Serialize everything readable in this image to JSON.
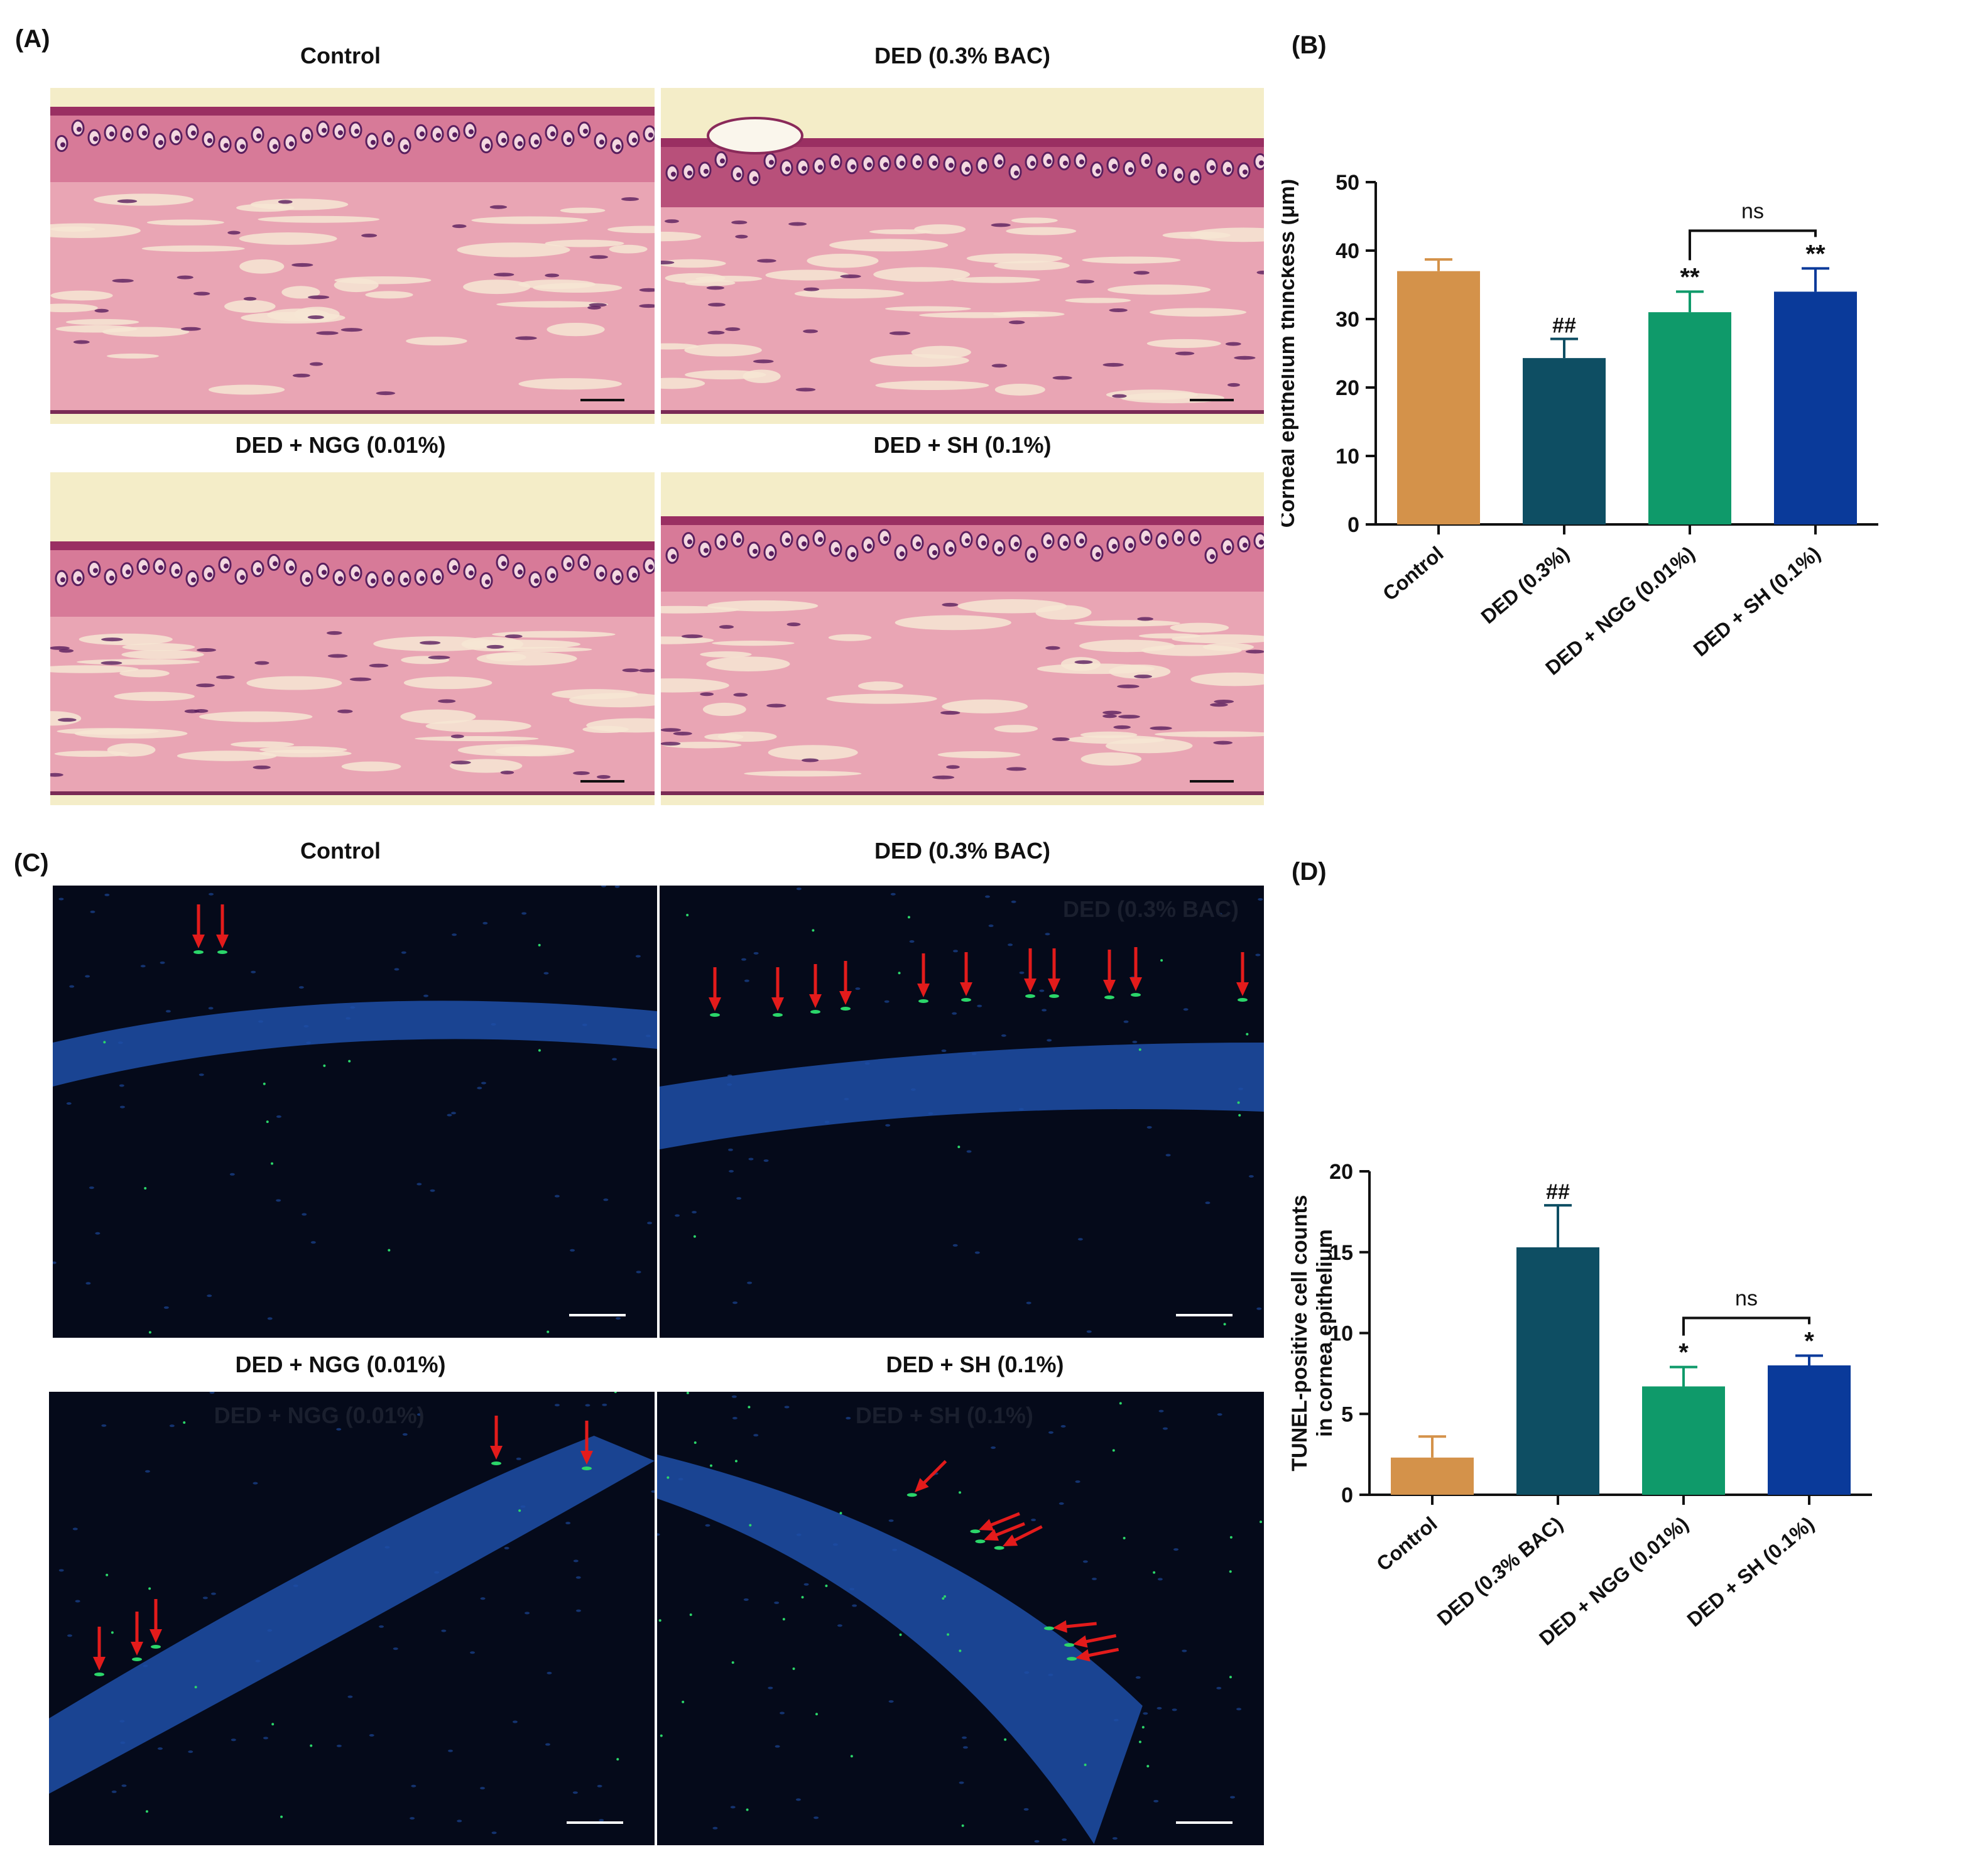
{
  "panel_letters": {
    "A": "(A)",
    "B": "(B)",
    "C": "(C)",
    "D": "(D)"
  },
  "he_panels": [
    {
      "title": "Control",
      "variant": "control"
    },
    {
      "title": "DED (0.3% BAC)",
      "variant": "ded"
    },
    {
      "title": "DED + NGG (0.01%)",
      "variant": "ngg"
    },
    {
      "title": "DED + SH (0.1%)",
      "variant": "sh"
    }
  ],
  "tunel_panels": [
    {
      "title": "Control",
      "overlay_label": "",
      "arrows": 2
    },
    {
      "title": "DED (0.3% BAC)",
      "overlay_label": "DED (0.3% BAC)",
      "arrows": 13
    },
    {
      "title": "DED + NGG (0.01%)",
      "overlay_label": "DED + NGG (0.01%)",
      "arrows": 5
    },
    {
      "title": "DED + SH (0.1%)",
      "overlay_label": "DED + SH (0.1%)",
      "arrows": 8
    }
  ],
  "colors": {
    "control": "#D4924A",
    "ded": "#0E4E63",
    "ngg": "#0F9A6A",
    "sh": "#0A3A9A",
    "arrow": "#E31B1B",
    "he_pink": "#E9A5B4",
    "he_nuclei": "#5A1F5E",
    "tunel_bg": "#050A1A",
    "dapi": "#1E4FA8",
    "tunel_green": "#2BD66A"
  },
  "chart_data": [
    {
      "type": "bar",
      "panel": "B",
      "categories": [
        "Control",
        "DED (0.3%)",
        "DED + NGG (0.01%)",
        "DED + SH (0.1%)"
      ],
      "values": [
        37,
        24.3,
        31,
        34
      ],
      "errors": [
        1.7,
        2.8,
        3.0,
        3.4
      ],
      "significance": [
        "",
        "##",
        "**",
        "**"
      ],
      "comparison": {
        "from": 2,
        "to": 3,
        "label": "ns"
      },
      "ylabel": "Corneal epithelium thinckess (μm)",
      "ylim": [
        0,
        50
      ],
      "yticks": [
        0,
        10,
        20,
        30,
        40,
        50
      ],
      "grid": false
    },
    {
      "type": "bar",
      "panel": "D",
      "categories": [
        "Control",
        "DED (0.3% BAC)",
        "DED + NGG (0.01%)",
        "DED + SH (0.1%)"
      ],
      "values": [
        2.3,
        15.3,
        6.7,
        8.0
      ],
      "errors": [
        1.3,
        2.6,
        1.2,
        0.6
      ],
      "significance": [
        "",
        "##",
        "*",
        "*"
      ],
      "comparison": {
        "from": 2,
        "to": 3,
        "label": "ns"
      },
      "ylabel": [
        "TUNEL-positive cell counts",
        "in cornea epithelium"
      ],
      "ylim": [
        0,
        20
      ],
      "yticks": [
        0,
        5,
        10,
        15,
        20
      ],
      "grid": false
    }
  ]
}
